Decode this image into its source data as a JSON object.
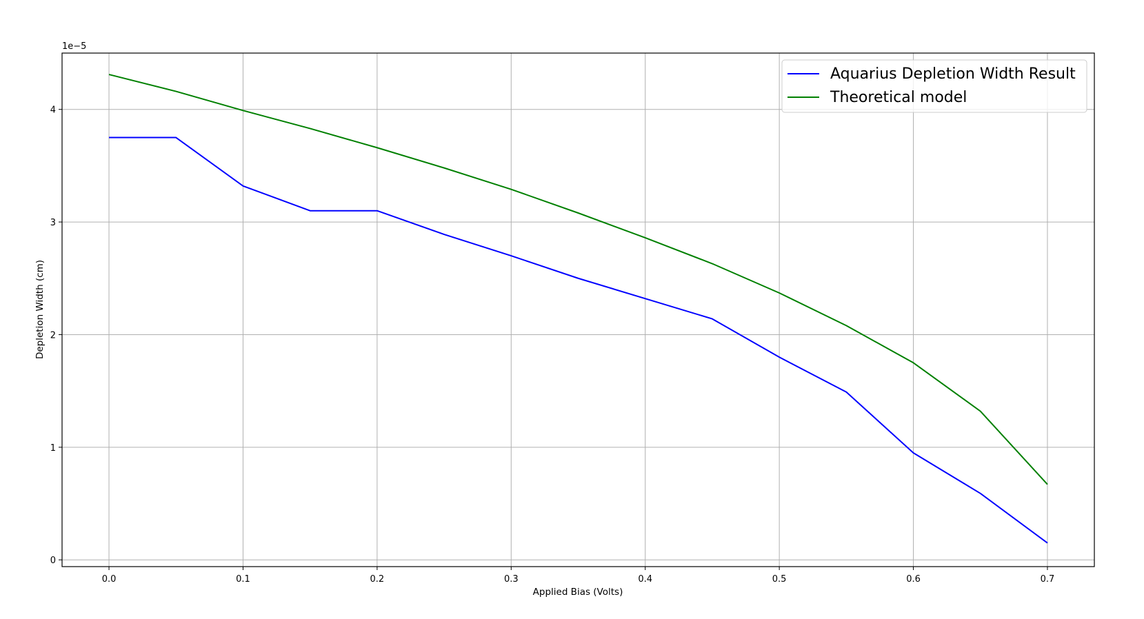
{
  "chart_data": {
    "type": "line",
    "title": "",
    "xlabel": "Applied Bias (Volts)",
    "ylabel": "Depletion Width (cm)",
    "y_offset_text": "1e−5",
    "y_scale": 1e-05,
    "xlim": [
      -0.035,
      0.735
    ],
    "ylim": [
      -0.06,
      4.5
    ],
    "x_ticks": [
      0.0,
      0.1,
      0.2,
      0.3,
      0.4,
      0.5,
      0.6,
      0.7
    ],
    "x_tick_labels": [
      "0.0",
      "0.1",
      "0.2",
      "0.3",
      "0.4",
      "0.5",
      "0.6",
      "0.7"
    ],
    "y_ticks": [
      0,
      1,
      2,
      3,
      4
    ],
    "y_tick_labels": [
      "0",
      "1",
      "2",
      "3",
      "4"
    ],
    "grid": true,
    "legend_position": "top-right",
    "x": [
      0.0,
      0.05,
      0.1,
      0.15,
      0.2,
      0.25,
      0.3,
      0.35,
      0.4,
      0.45,
      0.5,
      0.55,
      0.6,
      0.65,
      0.7
    ],
    "series": [
      {
        "name": "Aquarius Depletion Width Result",
        "color": "#0000ff",
        "values": [
          3.75,
          3.75,
          3.32,
          3.1,
          3.1,
          2.89,
          2.7,
          2.5,
          2.32,
          2.14,
          1.8,
          1.49,
          0.95,
          0.59,
          0.15
        ]
      },
      {
        "name": "Theoretical model",
        "color": "#008000",
        "values": [
          4.31,
          4.16,
          3.99,
          3.83,
          3.66,
          3.48,
          3.29,
          3.08,
          2.86,
          2.63,
          2.37,
          2.08,
          1.75,
          1.32,
          0.67
        ]
      }
    ]
  }
}
